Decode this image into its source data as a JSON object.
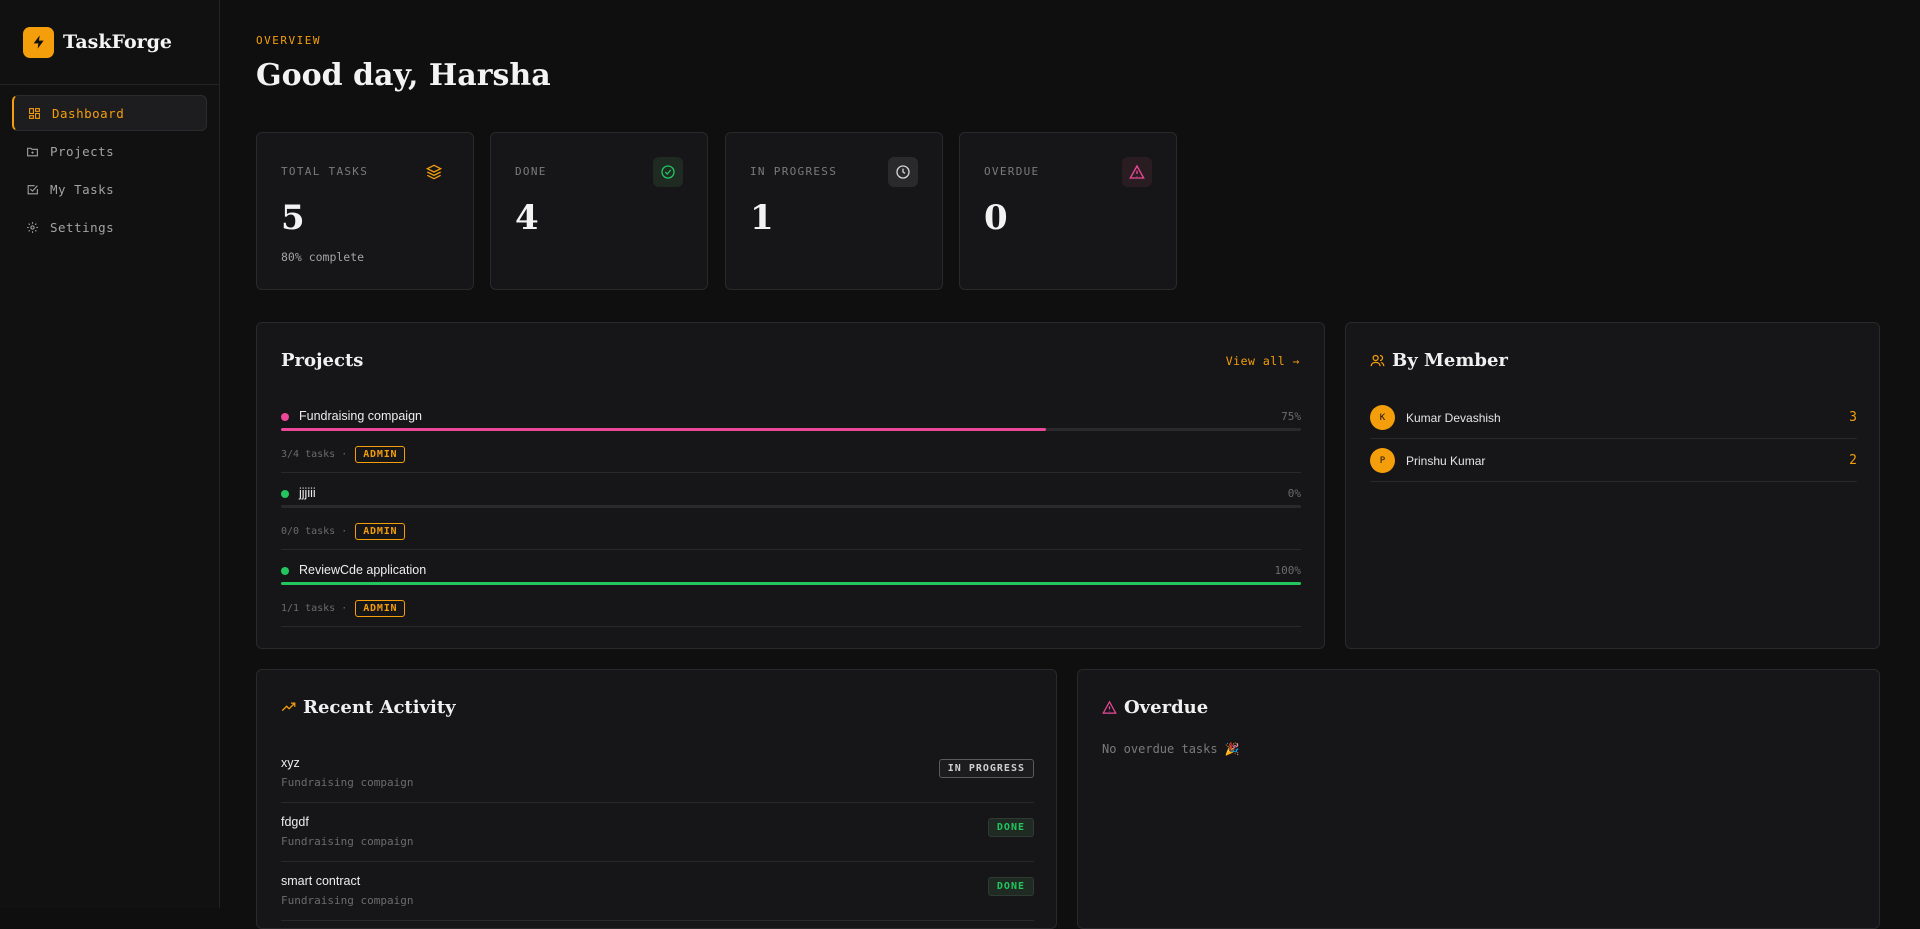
{
  "app": {
    "name": "TaskForge"
  },
  "sidebar": {
    "items": [
      {
        "label": "Dashboard",
        "icon": "dashboard-icon",
        "active": true
      },
      {
        "label": "Projects",
        "icon": "folder-icon",
        "active": false
      },
      {
        "label": "My Tasks",
        "icon": "checkbox-icon",
        "active": false
      },
      {
        "label": "Settings",
        "icon": "gear-icon",
        "active": false
      }
    ]
  },
  "header": {
    "eyebrow": "OVERVIEW",
    "greeting": "Good day, Harsha"
  },
  "stats": [
    {
      "label": "TOTAL TASKS",
      "value": "5",
      "sub": "80% complete",
      "icon": "layers-icon"
    },
    {
      "label": "DONE",
      "value": "4",
      "sub": "",
      "icon": "check-circle-icon"
    },
    {
      "label": "IN PROGRESS",
      "value": "1",
      "sub": "",
      "icon": "clock-icon"
    },
    {
      "label": "OVERDUE",
      "value": "0",
      "sub": "",
      "icon": "warning-icon"
    }
  ],
  "projects": {
    "title": "Projects",
    "view_all": "View all →",
    "items": [
      {
        "name": "Fundraising compaign",
        "percent_label": "75%",
        "progress": 0.75,
        "tasks": "3/4 tasks ·",
        "role": "ADMIN",
        "color": "#ec4899"
      },
      {
        "name": "jjjiii",
        "percent_label": "0%",
        "progress": 0,
        "tasks": "0/0 tasks ·",
        "role": "ADMIN",
        "color": "#22c55e"
      },
      {
        "name": "ReviewCde application",
        "percent_label": "100%",
        "progress": 1,
        "tasks": "1/1 tasks ·",
        "role": "ADMIN",
        "color": "#22c55e"
      }
    ]
  },
  "by_member": {
    "title": "By Member",
    "members": [
      {
        "initial": "K",
        "name": "Kumar Devashish",
        "count": "3"
      },
      {
        "initial": "P",
        "name": "Prinshu Kumar",
        "count": "2"
      }
    ]
  },
  "activity": {
    "title": "Recent Activity",
    "items": [
      {
        "title": "xyz",
        "project": "Fundraising compaign",
        "status": "IN PROGRESS"
      },
      {
        "title": "fdgdf",
        "project": "Fundraising compaign",
        "status": "DONE"
      },
      {
        "title": "smart contract",
        "project": "Fundraising compaign",
        "status": "DONE"
      }
    ]
  },
  "overdue": {
    "title": "Overdue",
    "empty": "No overdue tasks 🎉"
  },
  "colors": {
    "accent": "#f59e0b",
    "success": "#22c55e",
    "danger": "#ec4899"
  }
}
